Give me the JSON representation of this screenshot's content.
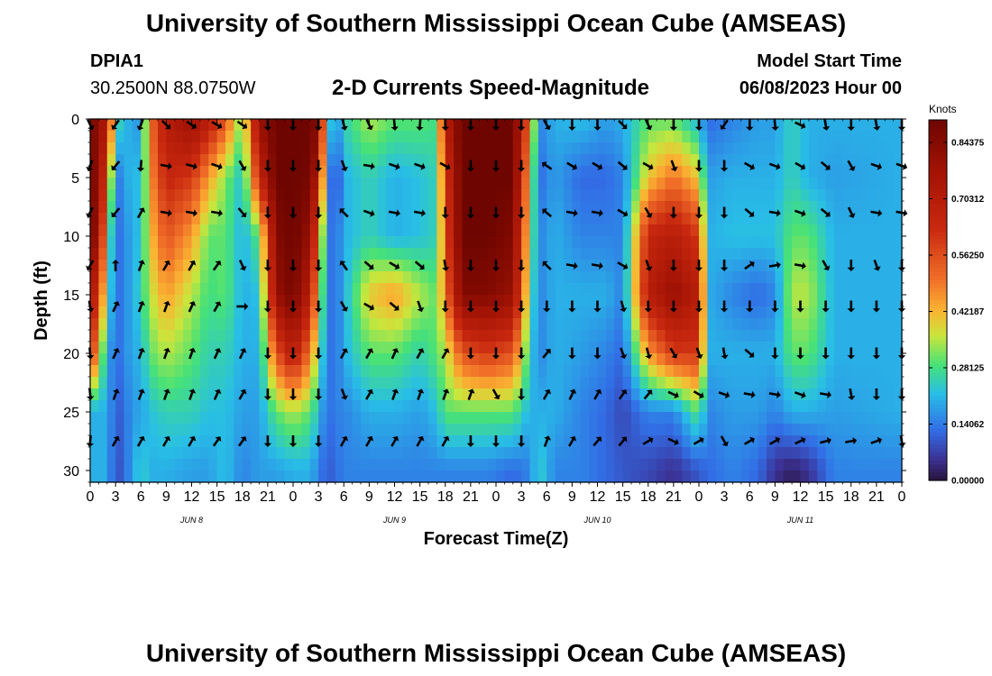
{
  "header": {
    "title": "University of Southern Mississippi Ocean Cube (AMSEAS)",
    "station": "DPIA1",
    "coords": "30.2500N  88.0750W",
    "product": "2-D Currents Speed-Magnitude",
    "model_start_label": "Model Start Time",
    "model_start_value": "06/08/2023 Hour 00"
  },
  "footer": {
    "title": "University of Southern Mississippi Ocean Cube (AMSEAS)"
  },
  "chart_data": {
    "type": "heatmap",
    "title": "2-D Currents Speed-Magnitude",
    "xlabel": "Forecast Time(Z)",
    "ylabel": "Depth (ft)",
    "xlim": [
      0,
      96
    ],
    "ylim": [
      31,
      0
    ],
    "x_tick_hours": [
      0,
      3,
      6,
      9,
      12,
      15,
      18,
      21,
      24,
      27,
      30,
      33,
      36,
      39,
      42,
      45,
      48,
      51,
      54,
      57,
      60,
      63,
      66,
      69,
      72,
      75,
      78,
      81,
      84,
      87,
      90,
      93,
      96
    ],
    "x_tick_labels": [
      "0",
      "3",
      "6",
      "9",
      "12",
      "15",
      "18",
      "21",
      "0",
      "3",
      "6",
      "9",
      "12",
      "15",
      "18",
      "21",
      "0",
      "3",
      "6",
      "9",
      "12",
      "15",
      "18",
      "21",
      "0",
      "3",
      "6",
      "9",
      "12",
      "15",
      "18",
      "21",
      "0"
    ],
    "date_labels": [
      {
        "text": "JUN 8",
        "hour": 12
      },
      {
        "text": "JUN 9",
        "hour": 36
      },
      {
        "text": "JUN 10",
        "hour": 60
      },
      {
        "text": "JUN 11",
        "hour": 84
      }
    ],
    "y_ticks": [
      0,
      5,
      10,
      15,
      20,
      25,
      30
    ],
    "y_tick_labels": [
      "0",
      "5",
      "10",
      "15",
      "20",
      "25",
      "30"
    ],
    "colorbar": {
      "label": "Knots",
      "min": 0.0,
      "max": 0.9,
      "ticks": [
        0.84375,
        0.703125,
        0.5625,
        0.421875,
        0.28125,
        0.140625,
        0.0
      ],
      "tick_labels": [
        "0.84375",
        "0.70312",
        "0.56250",
        "0.42187",
        "0.28125",
        "0.14062",
        "0.00000"
      ]
    },
    "speed_profiles": [
      {
        "hour": 0,
        "s": [
          0.85,
          0.85,
          0.85,
          0.75,
          0.65,
          0.2,
          0.2
        ]
      },
      {
        "hour": 1,
        "s": [
          0.85,
          0.85,
          0.8,
          0.6,
          0.4,
          0.2,
          0.2
        ]
      },
      {
        "hour": 2,
        "s": [
          0.7,
          0.5,
          0.35,
          0.3,
          0.2,
          0.2,
          0.2
        ]
      },
      {
        "hour": 3,
        "s": [
          0.3,
          0.15,
          0.12,
          0.12,
          0.12,
          0.1,
          0.08
        ]
      },
      {
        "hour": 4,
        "s": [
          0.2,
          0.15,
          0.15,
          0.15,
          0.15,
          0.12,
          0.12
        ]
      },
      {
        "hour": 5,
        "s": [
          0.2,
          0.25,
          0.2,
          0.2,
          0.2,
          0.18,
          0.18
        ]
      },
      {
        "hour": 6,
        "s": [
          0.15,
          0.18,
          0.22,
          0.25,
          0.2,
          0.18,
          0.25
        ]
      },
      {
        "hour": 7,
        "s": [
          0.5,
          0.45,
          0.4,
          0.35,
          0.3,
          0.22,
          0.2
        ]
      },
      {
        "hour": 9,
        "s": [
          0.7,
          0.65,
          0.55,
          0.45,
          0.35,
          0.25,
          0.2
        ]
      },
      {
        "hour": 12,
        "s": [
          0.8,
          0.6,
          0.45,
          0.35,
          0.3,
          0.25,
          0.18
        ]
      },
      {
        "hour": 14,
        "s": [
          0.7,
          0.45,
          0.3,
          0.28,
          0.25,
          0.22,
          0.18
        ]
      },
      {
        "hour": 16,
        "s": [
          0.55,
          0.32,
          0.3,
          0.3,
          0.25,
          0.22,
          0.22
        ]
      },
      {
        "hour": 18,
        "s": [
          0.3,
          0.22,
          0.2,
          0.2,
          0.2,
          0.18,
          0.15
        ]
      },
      {
        "hour": 20,
        "s": [
          0.8,
          0.65,
          0.3,
          0.22,
          0.2,
          0.18,
          0.18
        ]
      },
      {
        "hour": 22,
        "s": [
          0.9,
          0.9,
          0.85,
          0.8,
          0.55,
          0.3,
          0.18
        ]
      },
      {
        "hour": 24,
        "s": [
          0.9,
          0.9,
          0.9,
          0.88,
          0.7,
          0.35,
          0.2
        ]
      },
      {
        "hour": 26,
        "s": [
          0.9,
          0.88,
          0.8,
          0.7,
          0.5,
          0.3,
          0.2
        ]
      },
      {
        "hour": 27,
        "s": [
          0.85,
          0.7,
          0.5,
          0.4,
          0.3,
          0.22,
          0.15
        ]
      },
      {
        "hour": 28,
        "s": [
          0.3,
          0.2,
          0.15,
          0.15,
          0.15,
          0.12,
          0.1
        ]
      },
      {
        "hour": 29,
        "s": [
          0.15,
          0.05,
          0.12,
          0.12,
          0.12,
          0.15,
          0.12
        ]
      },
      {
        "hour": 30,
        "s": [
          0.25,
          0.2,
          0.2,
          0.2,
          0.2,
          0.15,
          0.15
        ]
      },
      {
        "hour": 33,
        "s": [
          0.35,
          0.25,
          0.25,
          0.4,
          0.3,
          0.2,
          0.15
        ]
      },
      {
        "hour": 36,
        "s": [
          0.3,
          0.2,
          0.2,
          0.45,
          0.3,
          0.2,
          0.15
        ]
      },
      {
        "hour": 39,
        "s": [
          0.3,
          0.22,
          0.22,
          0.35,
          0.25,
          0.18,
          0.15
        ]
      },
      {
        "hour": 41,
        "s": [
          0.28,
          0.25,
          0.25,
          0.3,
          0.3,
          0.22,
          0.15
        ]
      },
      {
        "hour": 42,
        "s": [
          0.7,
          0.6,
          0.55,
          0.5,
          0.35,
          0.3,
          0.15
        ]
      },
      {
        "hour": 44,
        "s": [
          0.9,
          0.9,
          0.9,
          0.85,
          0.55,
          0.3,
          0.15
        ]
      },
      {
        "hour": 47,
        "s": [
          0.9,
          0.9,
          0.9,
          0.85,
          0.6,
          0.3,
          0.15
        ]
      },
      {
        "hour": 50,
        "s": [
          0.9,
          0.9,
          0.85,
          0.8,
          0.55,
          0.3,
          0.12
        ]
      },
      {
        "hour": 52,
        "s": [
          0.5,
          0.4,
          0.35,
          0.3,
          0.25,
          0.2,
          0.15
        ]
      },
      {
        "hour": 53,
        "s": [
          0.15,
          0.12,
          0.15,
          0.15,
          0.15,
          0.2,
          0.25
        ]
      },
      {
        "hour": 55,
        "s": [
          0.2,
          0.18,
          0.2,
          0.2,
          0.2,
          0.2,
          0.15
        ]
      },
      {
        "hour": 58,
        "s": [
          0.22,
          0.12,
          0.15,
          0.2,
          0.18,
          0.15,
          0.15
        ]
      },
      {
        "hour": 61,
        "s": [
          0.18,
          0.12,
          0.15,
          0.2,
          0.15,
          0.12,
          0.12
        ]
      },
      {
        "hour": 63,
        "s": [
          0.2,
          0.15,
          0.15,
          0.15,
          0.12,
          0.08,
          0.1
        ]
      },
      {
        "hour": 66,
        "s": [
          0.3,
          0.4,
          0.65,
          0.7,
          0.45,
          0.15,
          0.08
        ]
      },
      {
        "hour": 69,
        "s": [
          0.3,
          0.5,
          0.7,
          0.8,
          0.6,
          0.15,
          0.05
        ]
      },
      {
        "hour": 72,
        "s": [
          0.2,
          0.4,
          0.6,
          0.7,
          0.6,
          0.3,
          0.1
        ]
      },
      {
        "hour": 73,
        "s": [
          0.12,
          0.18,
          0.2,
          0.2,
          0.2,
          0.15,
          0.12
        ]
      },
      {
        "hour": 76,
        "s": [
          0.15,
          0.2,
          0.22,
          0.15,
          0.2,
          0.18,
          0.15
        ]
      },
      {
        "hour": 79,
        "s": [
          0.18,
          0.2,
          0.22,
          0.12,
          0.2,
          0.18,
          0.12
        ]
      },
      {
        "hour": 81,
        "s": [
          0.18,
          0.2,
          0.22,
          0.15,
          0.2,
          0.15,
          0.05
        ]
      },
      {
        "hour": 83,
        "s": [
          0.25,
          0.25,
          0.3,
          0.35,
          0.3,
          0.2,
          0.02
        ]
      },
      {
        "hour": 85,
        "s": [
          0.2,
          0.2,
          0.3,
          0.35,
          0.3,
          0.2,
          0.05
        ]
      },
      {
        "hour": 88,
        "s": [
          0.2,
          0.18,
          0.2,
          0.2,
          0.2,
          0.18,
          0.15
        ]
      },
      {
        "hour": 96,
        "s": [
          0.2,
          0.2,
          0.2,
          0.2,
          0.2,
          0.2,
          0.15
        ]
      }
    ],
    "profile_depths": [
      0,
      5,
      10,
      15,
      20,
      25,
      30
    ],
    "vector_depths": [
      0.5,
      4,
      8,
      12.5,
      16,
      20,
      23.5,
      27.5
    ],
    "vector_hours": [
      0,
      3,
      6,
      9,
      12,
      15,
      18,
      21,
      24,
      27,
      30,
      33,
      36,
      39,
      42,
      45,
      48,
      51,
      54,
      57,
      60,
      63,
      66,
      69,
      72,
      75,
      78,
      81,
      84,
      87,
      90,
      93,
      96
    ],
    "vector_directions_deg": [
      [
        155,
        215,
        200,
        135,
        125,
        120,
        125,
        180,
        180,
        180,
        165,
        155,
        175,
        185,
        180,
        180,
        180,
        180,
        150,
        180,
        180,
        135,
        155,
        180,
        180,
        215,
        180,
        175,
        115,
        170,
        180,
        170,
        180
      ],
      [
        200,
        220,
        185,
        100,
        105,
        110,
        150,
        180,
        180,
        180,
        160,
        100,
        110,
        110,
        120,
        180,
        180,
        180,
        305,
        120,
        120,
        130,
        120,
        160,
        180,
        180,
        120,
        110,
        120,
        130,
        150,
        110,
        110
      ],
      [
        205,
        220,
        30,
        100,
        100,
        100,
        140,
        180,
        180,
        180,
        315,
        110,
        100,
        100,
        180,
        180,
        180,
        180,
        310,
        100,
        100,
        120,
        150,
        180,
        180,
        180,
        130,
        100,
        110,
        130,
        155,
        100,
        100
      ],
      [
        210,
        0,
        20,
        30,
        30,
        35,
        155,
        180,
        180,
        180,
        325,
        130,
        120,
        130,
        170,
        180,
        180,
        180,
        315,
        100,
        100,
        120,
        160,
        180,
        180,
        180,
        55,
        80,
        100,
        150,
        180,
        160,
        180
      ],
      [
        170,
        25,
        20,
        20,
        25,
        30,
        90,
        180,
        180,
        180,
        150,
        120,
        130,
        160,
        180,
        180,
        180,
        180,
        180,
        180,
        180,
        165,
        180,
        180,
        180,
        180,
        180,
        180,
        180,
        180,
        180,
        180,
        180
      ],
      [
        175,
        25,
        20,
        20,
        20,
        25,
        25,
        180,
        180,
        180,
        30,
        30,
        25,
        30,
        30,
        180,
        180,
        180,
        40,
        180,
        180,
        160,
        165,
        150,
        160,
        170,
        130,
        180,
        180,
        180,
        180,
        180,
        180
      ],
      [
        175,
        20,
        20,
        20,
        20,
        25,
        30,
        180,
        180,
        180,
        160,
        30,
        20,
        20,
        20,
        20,
        150,
        180,
        30,
        25,
        30,
        35,
        40,
        115,
        120,
        110,
        100,
        100,
        110,
        100,
        170,
        180,
        180
      ],
      [
        185,
        30,
        30,
        30,
        30,
        35,
        35,
        180,
        180,
        180,
        30,
        30,
        30,
        30,
        30,
        180,
        180,
        180,
        20,
        30,
        40,
        40,
        60,
        115,
        60,
        150,
        60,
        60,
        65,
        75,
        80,
        70,
        170
      ]
    ]
  }
}
